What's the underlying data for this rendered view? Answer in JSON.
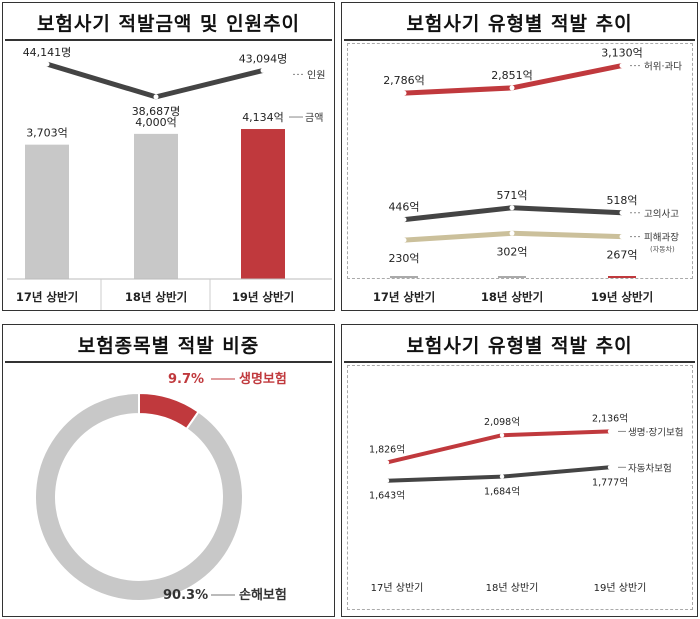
{
  "colors": {
    "gray_bar": "#c8c8c8",
    "red_bar": "#c0393d",
    "dark_line": "#444444",
    "red_line": "#c0393d",
    "tan_line": "#cbc09b",
    "pie_gray": "#c8c8c8",
    "pie_red": "#c0393d"
  },
  "panels": {
    "top_left_title": "보험사기 적발금액 및 인원추이",
    "top_right_title": "보험사기 유형별 적발 추이",
    "bottom_left_title": "보험종목별 적발 비중",
    "bottom_right_title": "보험사기 유형별 적발 추이"
  },
  "chart_data": [
    {
      "id": "amount_and_people",
      "type": "bar",
      "title": "보험사기 적발금액 및 인원추이",
      "categories": [
        "17년 상반기",
        "18년 상반기",
        "19년 상반기"
      ],
      "series": [
        {
          "name": "금액",
          "type": "bar",
          "values": [
            3703,
            4000,
            4134
          ],
          "labels": [
            "3,703억",
            "4,000억",
            "4,134억"
          ]
        },
        {
          "name": "인원",
          "type": "line",
          "values": [
            44141,
            38687,
            43094
          ],
          "labels": [
            "44,141명",
            "38,687명",
            "43,094명"
          ]
        }
      ]
    },
    {
      "id": "type_trend_amount",
      "type": "line",
      "title": "보험사기 유형별 적발 추이",
      "categories": [
        "17년 상반기",
        "18년 상반기",
        "19년 상반기"
      ],
      "series": [
        {
          "name": "허위·과다",
          "values": [
            2786,
            2851,
            3130
          ],
          "labels": [
            "2,786억",
            "2,851억",
            "3,130억"
          ]
        },
        {
          "name": "고의사고",
          "values": [
            446,
            571,
            518
          ],
          "labels": [
            "446억",
            "571억",
            "518억"
          ]
        },
        {
          "name": "피해과장",
          "name_note": "(자동차)",
          "values": [
            230,
            302,
            267
          ],
          "labels": [
            "230억",
            "302억",
            "267억"
          ]
        }
      ]
    },
    {
      "id": "type_share",
      "type": "pie",
      "title": "보험종목별 적발 비중",
      "slices": [
        {
          "name": "생명보험",
          "value": 9.7,
          "label": "9.7%"
        },
        {
          "name": "손해보험",
          "value": 90.3,
          "label": "90.3%"
        }
      ]
    },
    {
      "id": "type_trend_insurance",
      "type": "line",
      "title": "보험사기 유형별 적발 추이",
      "categories": [
        "17년 상반기",
        "18년 상반기",
        "19년 상반기"
      ],
      "series": [
        {
          "name": "생명·장기보험",
          "values": [
            1826,
            2098,
            2136
          ],
          "labels": [
            "1,826억",
            "2,098억",
            "2,136억"
          ]
        },
        {
          "name": "자동차보험",
          "values": [
            1643,
            1684,
            1777
          ],
          "labels": [
            "1,643억",
            "1,684억",
            "1,777억"
          ]
        }
      ]
    }
  ]
}
